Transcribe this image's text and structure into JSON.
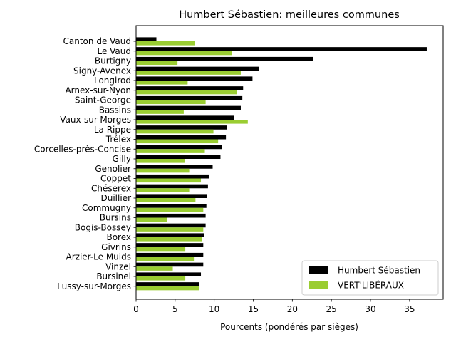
{
  "chart_data": {
    "type": "bar",
    "orientation": "horizontal",
    "title": "Humbert Sébastien: meilleures communes",
    "xlabel": "Pourcents (pondérés par sièges)",
    "ylabel": "",
    "xlim": [
      0,
      39.3
    ],
    "xticks": [
      0,
      5,
      10,
      15,
      20,
      25,
      30,
      35
    ],
    "grid": false,
    "legend_position": "bottom-right",
    "categories": [
      "Canton de Vaud",
      "Le Vaud",
      "Burtigny",
      "Signy-Avenex",
      "Longirod",
      "Arnex-sur-Nyon",
      "Saint-George",
      "Bassins",
      "Vaux-sur-Morges",
      "La Rippe",
      "Trélex",
      "Corcelles-près-Concise",
      "Gilly",
      "Genolier",
      "Coppet",
      "Chéserex",
      "Duillier",
      "Commugny",
      "Bursins",
      "Bogis-Bossey",
      "Borex",
      "Givrins",
      "Arzier-Le Muids",
      "Vinzel",
      "Bursinel",
      "Lussy-sur-Morges"
    ],
    "series": [
      {
        "name": "Humbert Sébastien",
        "color": "#000000",
        "values": [
          2.6,
          37.2,
          22.7,
          15.7,
          14.9,
          13.7,
          13.6,
          13.4,
          12.5,
          11.6,
          11.5,
          11.0,
          10.8,
          9.8,
          9.3,
          9.2,
          9.1,
          9.0,
          8.9,
          8.9,
          8.7,
          8.6,
          8.6,
          8.6,
          8.3,
          8.1
        ]
      },
      {
        "name": "VERT'LIBÉRAUX",
        "color": "#9acd32",
        "values": [
          7.5,
          12.3,
          5.3,
          13.4,
          6.6,
          12.9,
          8.9,
          6.1,
          14.3,
          9.9,
          10.5,
          8.8,
          6.2,
          6.8,
          8.3,
          6.8,
          7.6,
          8.6,
          4.0,
          8.6,
          8.4,
          6.3,
          7.4,
          4.7,
          6.3,
          8.1
        ]
      }
    ]
  }
}
